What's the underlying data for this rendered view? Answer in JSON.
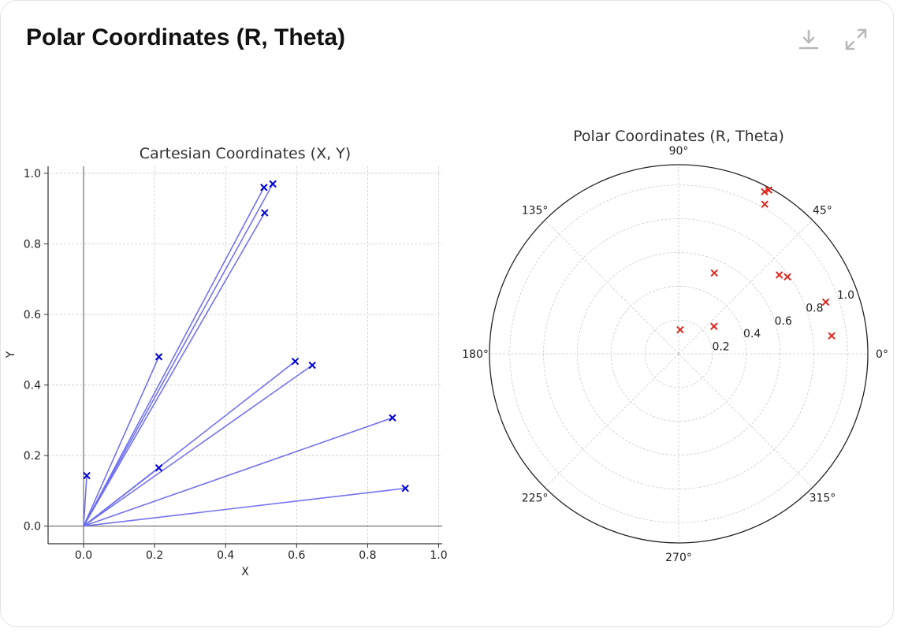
{
  "header": {
    "title": "Polar Coordinates (R, Theta)",
    "download_icon": "download-icon",
    "expand_icon": "expand-icon"
  },
  "colors": {
    "cartesian_line": "#6b6bef",
    "cartesian_marker": "#0000d8",
    "polar_marker": "#e0261d",
    "grid": "#cccccc",
    "icon": "#b9b9b9"
  },
  "chart_data": [
    {
      "type": "scatter",
      "title": "Cartesian Coordinates (X, Y)",
      "xlabel": "X",
      "ylabel": "Y",
      "xlim": [
        -0.1,
        1.01
      ],
      "ylim": [
        -0.05,
        1.02
      ],
      "xticks": [
        0.0,
        0.2,
        0.4,
        0.6,
        0.8,
        1.0
      ],
      "xtick_labels": [
        "0.0",
        "0.2",
        "0.4",
        "0.6",
        "0.8",
        "1.0"
      ],
      "yticks": [
        0.0,
        0.2,
        0.4,
        0.6,
        0.8,
        1.0
      ],
      "ytick_labels": [
        "0.0",
        "0.2",
        "0.4",
        "0.6",
        "0.8",
        "1.0"
      ],
      "grid": true,
      "marker": "x",
      "lines_from_origin": true,
      "points": [
        {
          "x": 0.009,
          "y": 0.143
        },
        {
          "x": 0.212,
          "y": 0.48
        },
        {
          "x": 0.212,
          "y": 0.165
        },
        {
          "x": 0.508,
          "y": 0.96
        },
        {
          "x": 0.533,
          "y": 0.97
        },
        {
          "x": 0.51,
          "y": 0.888
        },
        {
          "x": 0.596,
          "y": 0.467
        },
        {
          "x": 0.644,
          "y": 0.456
        },
        {
          "x": 0.87,
          "y": 0.307
        },
        {
          "x": 0.906,
          "y": 0.107
        }
      ]
    },
    {
      "type": "scatter",
      "projection": "polar",
      "title": "Polar Coordinates (R, Theta)",
      "rlim": [
        0,
        1.12
      ],
      "rticks": [
        0.2,
        0.4,
        0.6,
        0.8,
        1.0
      ],
      "rtick_labels": [
        "0.2",
        "0.4",
        "0.6",
        "0.8",
        "1.0"
      ],
      "theta_ticks_deg": [
        0,
        45,
        90,
        135,
        180,
        225,
        270,
        315
      ],
      "theta_tick_labels": [
        "0°",
        "45°",
        "90°",
        "135°",
        "180°",
        "225°",
        "270°",
        "315°"
      ],
      "grid": true,
      "marker": "x",
      "points": [
        {
          "r": 0.143,
          "theta_deg": 86.4
        },
        {
          "r": 0.523,
          "theta_deg": 66.2
        },
        {
          "r": 0.265,
          "theta_deg": 37.9
        },
        {
          "r": 1.086,
          "theta_deg": 62.1
        },
        {
          "r": 1.107,
          "theta_deg": 61.2
        },
        {
          "r": 1.022,
          "theta_deg": 60.1
        },
        {
          "r": 0.757,
          "theta_deg": 38.1
        },
        {
          "r": 0.789,
          "theta_deg": 35.3
        },
        {
          "r": 0.923,
          "theta_deg": 19.4
        },
        {
          "r": 0.912,
          "theta_deg": 6.7
        }
      ]
    }
  ]
}
